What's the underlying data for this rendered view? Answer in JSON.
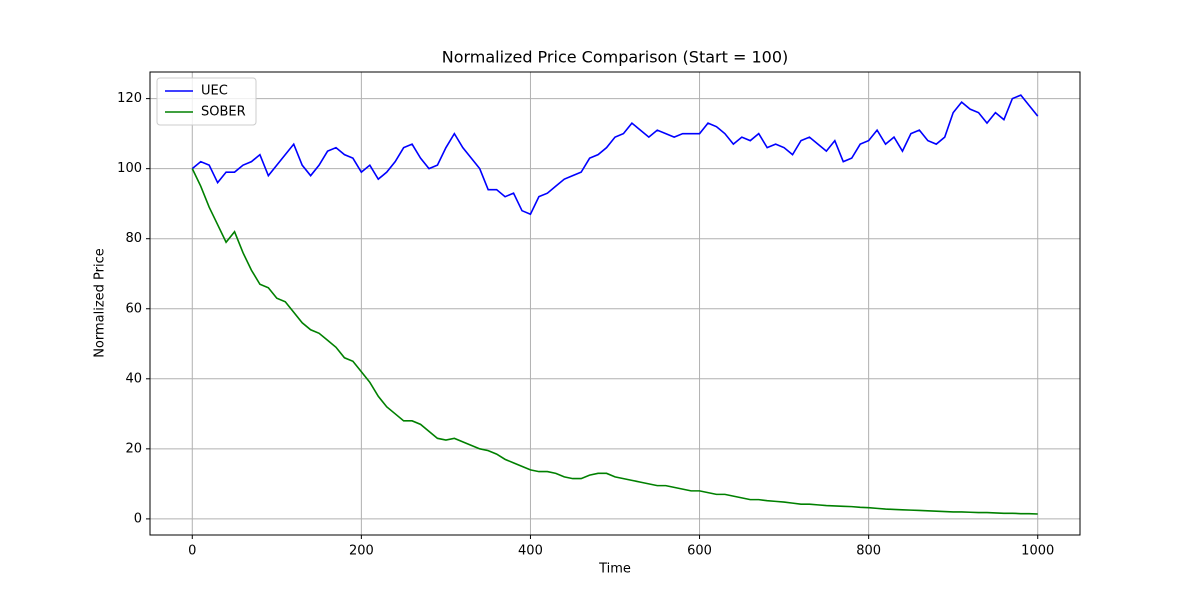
{
  "chart_data": {
    "type": "line",
    "title": "Normalized Price Comparison (Start = 100)",
    "x_label": "Time",
    "y_label": "Normalized Price",
    "x": [
      0,
      10,
      20,
      30,
      40,
      50,
      60,
      70,
      80,
      90,
      100,
      110,
      120,
      130,
      140,
      150,
      160,
      170,
      180,
      190,
      200,
      210,
      220,
      230,
      240,
      250,
      260,
      270,
      280,
      290,
      300,
      310,
      320,
      330,
      340,
      350,
      360,
      370,
      380,
      390,
      400,
      410,
      420,
      430,
      440,
      450,
      460,
      470,
      480,
      490,
      500,
      510,
      520,
      530,
      540,
      550,
      560,
      570,
      580,
      590,
      600,
      610,
      620,
      630,
      640,
      650,
      660,
      670,
      680,
      690,
      700,
      710,
      720,
      730,
      740,
      750,
      760,
      770,
      780,
      790,
      800,
      810,
      820,
      830,
      840,
      850,
      860,
      870,
      880,
      890,
      900,
      910,
      920,
      930,
      940,
      950,
      960,
      970,
      980,
      990,
      1000
    ],
    "series": [
      {
        "name": "UEC",
        "color": "#0000ff",
        "values": [
          100,
          102,
          101,
          96,
          99,
          99,
          101,
          102,
          104,
          98,
          101,
          104,
          107,
          101,
          98,
          101,
          105,
          106,
          104,
          103,
          99,
          101,
          97,
          99,
          102,
          106,
          107,
          103,
          100,
          101,
          106,
          110,
          106,
          103,
          100,
          94,
          94,
          92,
          93,
          88,
          87,
          92,
          93,
          95,
          97,
          98,
          99,
          103,
          104,
          106,
          109,
          110,
          113,
          111,
          109,
          111,
          110,
          109,
          110,
          110,
          110,
          113,
          112,
          110,
          107,
          109,
          108,
          110,
          106,
          107,
          106,
          104,
          108,
          109,
          107,
          105,
          108,
          102,
          103,
          107,
          108,
          111,
          107,
          109,
          105,
          110,
          111,
          108,
          107,
          109,
          116,
          119,
          117,
          116,
          113,
          116,
          114,
          120,
          121,
          118,
          115
        ]
      },
      {
        "name": "SOBER",
        "color": "#008000",
        "values": [
          100,
          95,
          89,
          84,
          79,
          82,
          76,
          71,
          67,
          66,
          63,
          62,
          59,
          56,
          54,
          53,
          51,
          49,
          46,
          45,
          42,
          39,
          35,
          32,
          30,
          28,
          28,
          27,
          25,
          23,
          22.5,
          23,
          22,
          21,
          20,
          19.5,
          18.5,
          17,
          16,
          15,
          14,
          13.5,
          13.5,
          13,
          12,
          11.5,
          11.5,
          12.5,
          13,
          13,
          12,
          11.5,
          11,
          10.5,
          10,
          9.5,
          9.5,
          9,
          8.5,
          8,
          8,
          7.5,
          7,
          7,
          6.5,
          6,
          5.5,
          5.5,
          5.2,
          5,
          4.8,
          4.5,
          4.2,
          4.2,
          4,
          3.8,
          3.7,
          3.6,
          3.5,
          3.3,
          3.2,
          3,
          2.8,
          2.7,
          2.6,
          2.5,
          2.4,
          2.3,
          2.2,
          2.1,
          2,
          2,
          1.9,
          1.8,
          1.8,
          1.7,
          1.6,
          1.6,
          1.5,
          1.5,
          1.4
        ]
      }
    ],
    "xlim": [
      -50,
      1050
    ],
    "ylim": [
      -4.6,
      127.6
    ],
    "xticks": [
      0,
      200,
      400,
      600,
      800,
      1000
    ],
    "yticks": [
      0,
      20,
      40,
      60,
      80,
      100,
      120
    ],
    "grid": true,
    "legend": "upper left"
  }
}
